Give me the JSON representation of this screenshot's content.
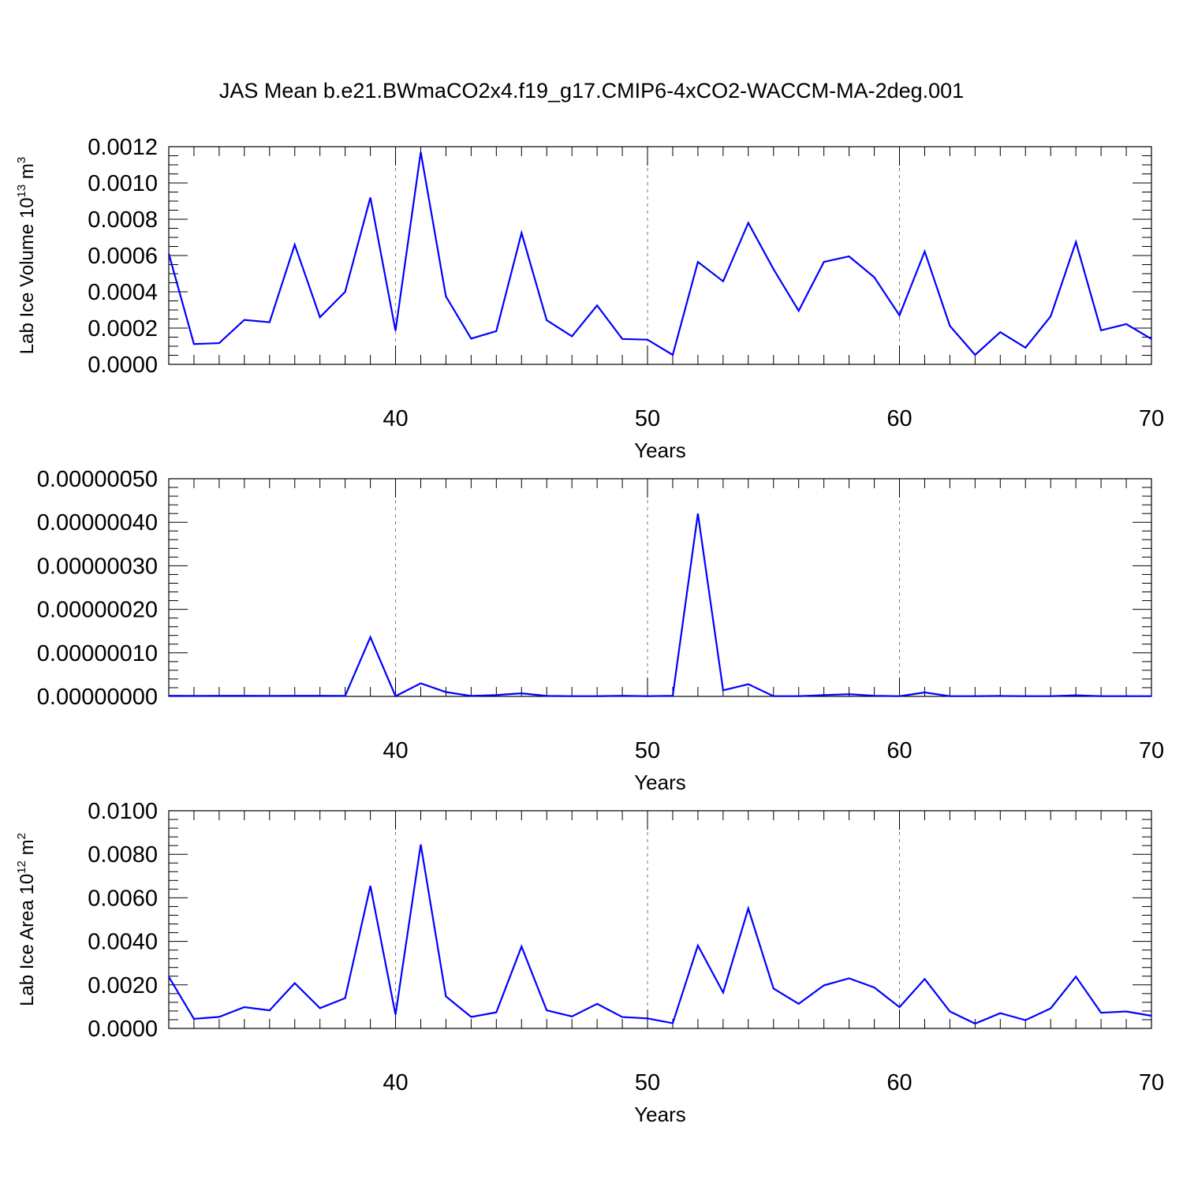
{
  "title": "JAS Mean b.e21.BWmaCO2x4.f19_g17.CMIP6-4xCO2-WACCM-MA-2deg.001",
  "colors": {
    "series": "#0000ff",
    "axis": "#000000",
    "grid": "#777777"
  },
  "chart_data": [
    {
      "type": "line",
      "xlabel": "Years",
      "ylabel": "Lab Ice Volume 10",
      "ylabel_sup": "13",
      "ylabel_unit": " m",
      "ylabel_unit_sup": "3",
      "xlim": [
        31,
        70
      ],
      "ylim": [
        0,
        0.0012
      ],
      "yticks": [
        "0.0000",
        "0.0002",
        "0.0004",
        "0.0006",
        "0.0008",
        "0.0010",
        "0.0012"
      ],
      "ytick_values": [
        0,
        0.0002,
        0.0004,
        0.0006,
        0.0008,
        0.001,
        0.0012
      ],
      "yminor": 5e-05,
      "xticks": [
        "40",
        "50",
        "60",
        "70"
      ],
      "xtick_values": [
        40,
        50,
        60,
        70
      ],
      "xminor": 1,
      "grid_x": [
        40,
        50,
        60
      ],
      "x": [
        31,
        32,
        33,
        34,
        35,
        36,
        37,
        38,
        39,
        40,
        41,
        42,
        43,
        44,
        45,
        46,
        47,
        48,
        49,
        50,
        51,
        52,
        53,
        54,
        55,
        56,
        57,
        58,
        59,
        60,
        61,
        62,
        63,
        64,
        65,
        66,
        67,
        68,
        69,
        70
      ],
      "values": [
        0.00061,
        0.000112,
        0.000117,
        0.000245,
        0.000232,
        0.00066,
        0.00026,
        0.0004,
        0.00092,
        0.000185,
        0.00117,
        0.000375,
        0.000142,
        0.000183,
        0.000725,
        0.000243,
        0.000155,
        0.000325,
        0.00014,
        0.000136,
        5.2e-05,
        0.000565,
        0.000458,
        0.00078,
        0.000525,
        0.000295,
        0.000565,
        0.000595,
        0.00048,
        0.00027,
        0.000622,
        0.000212,
        5.2e-05,
        0.000178,
        9.2e-05,
        0.000265,
        0.000675,
        0.000188,
        0.000222,
        0.00014
      ]
    },
    {
      "type": "line",
      "xlabel": "Years",
      "ylabel": "",
      "xlim": [
        31,
        70
      ],
      "ylim": [
        0,
        5e-07
      ],
      "yticks": [
        "0.00000000",
        "0.00000010",
        "0.00000020",
        "0.00000030",
        "0.00000040",
        "0.00000050"
      ],
      "ytick_values": [
        0,
        1e-07,
        2e-07,
        3e-07,
        4e-07,
        5e-07
      ],
      "yminor": 2e-08,
      "xticks": [
        "40",
        "50",
        "60",
        "70"
      ],
      "xtick_values": [
        40,
        50,
        60,
        70
      ],
      "xminor": 1,
      "grid_x": [
        40,
        50,
        60
      ],
      "x": [
        31,
        32,
        33,
        34,
        35,
        36,
        37,
        38,
        39,
        40,
        41,
        42,
        43,
        44,
        45,
        46,
        47,
        48,
        49,
        50,
        51,
        52,
        53,
        54,
        55,
        56,
        57,
        58,
        59,
        60,
        61,
        62,
        63,
        64,
        65,
        66,
        67,
        68,
        69,
        70
      ],
      "values": [
        1.5e-09,
        1e-09,
        1.5e-09,
        1.5e-09,
        1e-09,
        1.5e-09,
        1.5e-09,
        1e-09,
        1.36e-07,
        5e-10,
        3e-08,
        1e-08,
        1e-09,
        3e-09,
        7e-09,
        1e-09,
        5e-10,
        5e-10,
        1.5e-09,
        5e-10,
        1.5e-09,
        4.2e-07,
        1.4e-08,
        2.8e-08,
        5e-10,
        5e-10,
        3e-09,
        5e-09,
        1.5e-09,
        5e-10,
        9e-09,
        5e-10,
        5e-10,
        1e-09,
        5e-10,
        5e-10,
        2.5e-09,
        5e-10,
        5e-10,
        5e-10
      ]
    },
    {
      "type": "line",
      "xlabel": "Years",
      "ylabel": "Lab Ice Area 10",
      "ylabel_sup": "12",
      "ylabel_unit": " m",
      "ylabel_unit_sup": "2",
      "xlim": [
        31,
        70
      ],
      "ylim": [
        0,
        0.01
      ],
      "yticks": [
        "0.0000",
        "0.0020",
        "0.0040",
        "0.0060",
        "0.0080",
        "0.0100"
      ],
      "ytick_values": [
        0,
        0.002,
        0.004,
        0.006,
        0.008,
        0.01
      ],
      "yminor": 0.0004,
      "xticks": [
        "40",
        "50",
        "60",
        "70"
      ],
      "xtick_values": [
        40,
        50,
        60,
        70
      ],
      "xminor": 1,
      "grid_x": [
        40,
        50,
        60
      ],
      "x": [
        31,
        32,
        33,
        34,
        35,
        36,
        37,
        38,
        39,
        40,
        41,
        42,
        43,
        44,
        45,
        46,
        47,
        48,
        49,
        50,
        51,
        52,
        53,
        54,
        55,
        56,
        57,
        58,
        59,
        60,
        61,
        62,
        63,
        64,
        65,
        66,
        67,
        68,
        69,
        70
      ],
      "values": [
        0.00237,
        0.00044,
        0.00053,
        0.00098,
        0.00083,
        0.00208,
        0.00093,
        0.00139,
        0.00655,
        0.00063,
        0.00845,
        0.00147,
        0.00053,
        0.00074,
        0.00376,
        0.00083,
        0.00055,
        0.00113,
        0.00052,
        0.00046,
        0.00024,
        0.00381,
        0.00165,
        0.00551,
        0.00183,
        0.00113,
        0.00198,
        0.0023,
        0.00188,
        0.00098,
        0.00227,
        0.00078,
        0.00022,
        0.0007,
        0.00038,
        0.00092,
        0.00238,
        0.00072,
        0.00078,
        0.00058
      ]
    }
  ]
}
